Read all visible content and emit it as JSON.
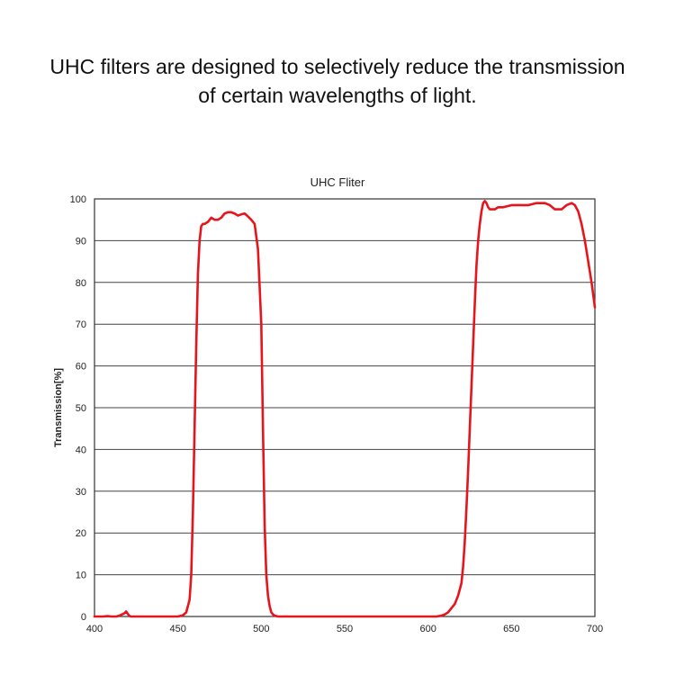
{
  "caption": {
    "line1": "UHC filters are designed to selectively reduce the transmission",
    "line2": "of certain wavelengths of light."
  },
  "chart_data": {
    "type": "line",
    "title": "UHC Fliter",
    "xlabel": "",
    "ylabel": "Transmission[%]",
    "xlim": [
      400,
      700
    ],
    "ylim": [
      0,
      100
    ],
    "xticks": [
      400,
      450,
      500,
      550,
      600,
      650,
      700
    ],
    "yticks": [
      0,
      10,
      20,
      30,
      40,
      50,
      60,
      70,
      80,
      90,
      100
    ],
    "grid": "horizontal",
    "line_color": "#e8141b",
    "series": [
      {
        "x": [
          400,
          405,
          408,
          410,
          413,
          415,
          418,
          419,
          420,
          421,
          422,
          424,
          426,
          430,
          440,
          450,
          453,
          455,
          457,
          458,
          459,
          460,
          461,
          462,
          463,
          464,
          465,
          466,
          468,
          470,
          472,
          474,
          476,
          478,
          480,
          482,
          484,
          486,
          488,
          490,
          492,
          494,
          496,
          498,
          500,
          501,
          502,
          503,
          504,
          505,
          506,
          507,
          508,
          509,
          510,
          512,
          515,
          520,
          530,
          540,
          550,
          560,
          570,
          580,
          590,
          600,
          605,
          608,
          610,
          612,
          614,
          616,
          618,
          620,
          621,
          622,
          623,
          624,
          625,
          626,
          627,
          628,
          629,
          630,
          631,
          632,
          633,
          634,
          635,
          636,
          637,
          638,
          639,
          640,
          642,
          645,
          650,
          655,
          660,
          665,
          670,
          673,
          676,
          680,
          683,
          686,
          688,
          690,
          692,
          694,
          696,
          698,
          700
        ],
        "y": [
          0,
          0,
          0.1,
          0,
          0,
          0.2,
          0.8,
          1.2,
          0.6,
          0.1,
          0,
          0,
          0,
          0,
          0,
          0,
          0.3,
          1,
          4,
          10,
          25,
          45,
          65,
          82,
          90,
          93.5,
          94,
          94,
          94.5,
          95.5,
          95,
          95,
          95.5,
          96.5,
          96.8,
          96.8,
          96.5,
          96,
          96.3,
          96.5,
          95.8,
          95,
          94,
          88,
          70,
          45,
          22,
          10,
          5,
          2.5,
          1,
          0.5,
          0.2,
          0.1,
          0,
          0,
          0,
          0,
          0,
          0,
          0,
          0,
          0,
          0,
          0,
          0,
          0,
          0.2,
          0.5,
          1,
          2,
          3,
          5,
          8,
          12,
          18,
          26,
          35,
          45,
          55,
          65,
          75,
          84,
          90,
          94,
          97,
          99,
          99.5,
          99,
          98,
          97.5,
          97.5,
          97.5,
          97.5,
          98,
          98,
          98.5,
          98.5,
          98.5,
          99,
          99,
          98.5,
          97.5,
          97.5,
          98.5,
          99,
          98.5,
          97,
          94,
          90,
          85,
          80,
          74
        ]
      }
    ]
  }
}
